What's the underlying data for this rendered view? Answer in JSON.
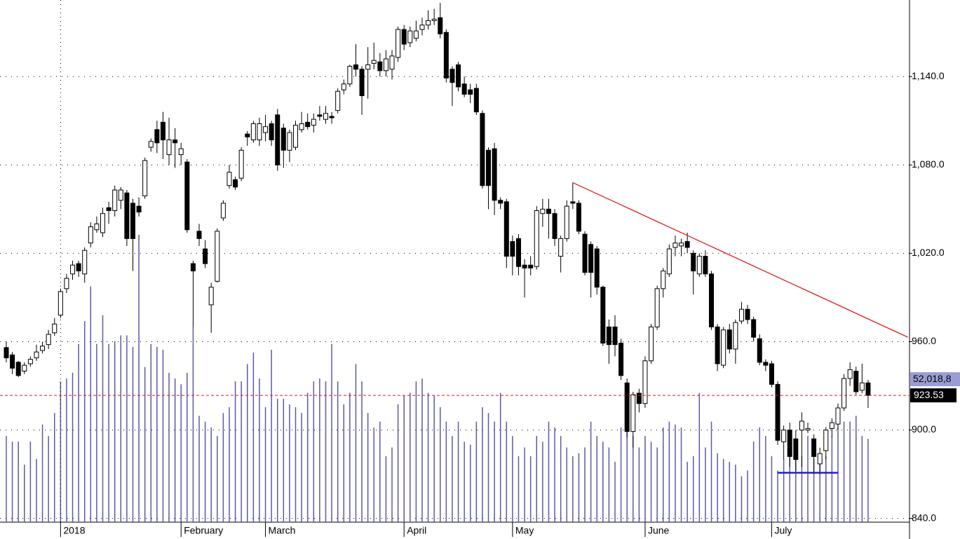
{
  "chart_data": {
    "type": "candlestick",
    "categories": [
      null,
      null,
      null,
      null,
      null,
      null,
      null,
      null,
      null,
      "2018",
      null,
      null,
      null,
      null,
      null,
      null,
      null,
      null,
      null,
      null,
      null,
      null,
      null,
      null,
      null,
      null,
      null,
      null,
      null,
      "February",
      null,
      null,
      null,
      null,
      null,
      null,
      null,
      null,
      null,
      null,
      null,
      null,
      null,
      "March",
      null,
      null,
      null,
      null,
      null,
      null,
      null,
      null,
      null,
      null,
      null,
      null,
      null,
      null,
      null,
      null,
      null,
      null,
      null,
      null,
      null,
      null,
      "April",
      null,
      null,
      null,
      null,
      null,
      null,
      null,
      null,
      null,
      null,
      null,
      null,
      null,
      null,
      null,
      null,
      null,
      "May",
      null,
      null,
      null,
      null,
      null,
      null,
      null,
      null,
      null,
      null,
      null,
      null,
      null,
      null,
      null,
      null,
      null,
      null,
      null,
      null,
      null,
      "June",
      null,
      null,
      null,
      null,
      null,
      null,
      null,
      null,
      null,
      null,
      null,
      null,
      null,
      null,
      null,
      null,
      null,
      null,
      null,
      null,
      "July",
      null,
      null,
      null,
      null,
      null,
      null,
      null,
      null,
      null,
      null,
      null,
      null,
      null,
      null,
      null,
      null
    ],
    "open": [
      956,
      951,
      946,
      940,
      945,
      949,
      954,
      958,
      966,
      978,
      996,
      1006,
      1013,
      1006,
      1027,
      1036,
      1034,
      1051,
      1049,
      1056,
      1061,
      1054,
      1052,
      1059,
      1092,
      1104,
      1109,
      1087,
      1097,
      1087,
      1082,
      1013,
      1035,
      1023,
      985,
      1001,
      1044,
      1066,
      1070,
      1071,
      1101,
      1097,
      1097,
      1102,
      1108,
      1114,
      1105,
      1090,
      1092,
      1104,
      1109,
      1107,
      1114,
      1111,
      1113,
      1117,
      1131,
      1135,
      1148,
      1145,
      1145,
      1149,
      1150,
      1144,
      1145,
      1153,
      1172,
      1163,
      1166,
      1172,
      1175,
      1178,
      1180,
      1170,
      1145,
      1148,
      1135,
      1131,
      1132,
      1115,
      1090,
      1091,
      1056,
      1055,
      1028,
      1030,
      1012,
      1012,
      1011,
      1047,
      1050,
      1047,
      1018,
      1030,
      1055,
      1054,
      1033,
      1026,
      1023,
      997,
      970,
      970,
      959,
      932,
      899,
      925,
      918,
      947,
      970,
      996,
      1006,
      1024,
      1025,
      1028,
      1020,
      1006,
      1018,
      1006,
      970,
      944,
      968,
      955,
      974,
      982,
      975,
      962,
      946,
      945,
      931,
      892,
      900,
      894,
      900,
      900,
      894,
      877,
      886,
      901,
      904,
      915,
      935,
      940,
      927,
      932
    ],
    "high": [
      960,
      953,
      947,
      946,
      950,
      958,
      960,
      968,
      976,
      996,
      1006,
      1015,
      1015,
      1024,
      1041,
      1045,
      1051,
      1055,
      1066,
      1065,
      1063,
      1057,
      1058,
      1085,
      1098,
      1110,
      1116,
      1112,
      1105,
      1095,
      1084,
      1015,
      1040,
      1029,
      1000,
      1037,
      1056,
      1080,
      1072,
      1092,
      1103,
      1110,
      1112,
      1114,
      1110,
      1118,
      1108,
      1104,
      1110,
      1116,
      1115,
      1115,
      1120,
      1120,
      1116,
      1132,
      1138,
      1148,
      1162,
      1147,
      1160,
      1163,
      1156,
      1158,
      1158,
      1174,
      1175,
      1174,
      1178,
      1180,
      1185,
      1186,
      1190,
      1172,
      1147,
      1150,
      1140,
      1135,
      1135,
      1117,
      1092,
      1095,
      1058,
      1057,
      1032,
      1033,
      1016,
      1018,
      1052,
      1057,
      1057,
      1050,
      1032,
      1056,
      1068,
      1056,
      1035,
      1028,
      1025,
      998,
      975,
      978,
      962,
      935,
      926,
      928,
      950,
      972,
      998,
      1010,
      1026,
      1032,
      1030,
      1034,
      1022,
      1020,
      1022,
      1008,
      972,
      970,
      972,
      975,
      987,
      985,
      977,
      965,
      948,
      947,
      933,
      903,
      905,
      900,
      912,
      905,
      897,
      888,
      902,
      908,
      918,
      938,
      946,
      943,
      945,
      934
    ],
    "low": [
      946,
      938,
      936,
      938,
      943,
      947,
      952,
      955,
      964,
      976,
      993,
      1002,
      1004,
      1000,
      1024,
      1034,
      1031,
      1040,
      1045,
      1050,
      1025,
      1008,
      1045,
      1057,
      1089,
      1088,
      1084,
      1080,
      1078,
      1080,
      1034,
      970,
      1025,
      1010,
      966,
      1000,
      1042,
      1064,
      1063,
      1069,
      1093,
      1095,
      1093,
      1096,
      1093,
      1076,
      1078,
      1082,
      1090,
      1102,
      1104,
      1102,
      1110,
      1108,
      1108,
      1115,
      1128,
      1133,
      1140,
      1114,
      1125,
      1145,
      1140,
      1140,
      1138,
      1150,
      1158,
      1160,
      1164,
      1168,
      1172,
      1175,
      1166,
      1136,
      1120,
      1130,
      1126,
      1122,
      1114,
      1064,
      1050,
      1046,
      1050,
      1010,
      1005,
      1005,
      990,
      1005,
      1009,
      1038,
      1030,
      1025,
      1007,
      1028,
      1050,
      1033,
      1005,
      990,
      992,
      957,
      945,
      950,
      934,
      895,
      888,
      912,
      915,
      945,
      968,
      990,
      1004,
      1018,
      1018,
      1020,
      992,
      1004,
      1004,
      968,
      940,
      942,
      952,
      945,
      972,
      972,
      960,
      944,
      940,
      929,
      890,
      880,
      875,
      872,
      875,
      898,
      870,
      870,
      880,
      895,
      900,
      913,
      930,
      924,
      925,
      915
    ],
    "close": [
      949,
      942,
      937,
      944,
      948,
      953,
      957,
      965,
      972,
      994,
      1003,
      1012,
      1008,
      1022,
      1038,
      1040,
      1047,
      1049,
      1063,
      1063,
      1030,
      1030,
      1048,
      1083,
      1096,
      1095,
      1097,
      1097,
      1095,
      1091,
      1036,
      1008,
      1030,
      1013,
      997,
      1035,
      1054,
      1075,
      1065,
      1090,
      1099,
      1108,
      1108,
      1106,
      1097,
      1080,
      1090,
      1102,
      1107,
      1108,
      1106,
      1111,
      1113,
      1115,
      1112,
      1130,
      1135,
      1147,
      1145,
      1127,
      1148,
      1151,
      1144,
      1152,
      1154,
      1172,
      1162,
      1171,
      1171,
      1175,
      1178,
      1179,
      1169,
      1139,
      1136,
      1133,
      1128,
      1128,
      1116,
      1066,
      1066,
      1056,
      1054,
      1018,
      1018,
      1011,
      1010,
      1010,
      1049,
      1050,
      1047,
      1030,
      1030,
      1052,
      1054,
      1035,
      1007,
      1007,
      997,
      959,
      958,
      958,
      937,
      899,
      924,
      918,
      947,
      970,
      996,
      1008,
      1023,
      1027,
      1027,
      1024,
      1008,
      1018,
      1006,
      970,
      945,
      968,
      955,
      973,
      982,
      975,
      963,
      946,
      944,
      931,
      893,
      900,
      882,
      880,
      906,
      901,
      882,
      884,
      900,
      905,
      915,
      935,
      941,
      926,
      932,
      923.53
    ],
    "volume": [
      30,
      28,
      28,
      20,
      28,
      22,
      34,
      30,
      38,
      49,
      50,
      52,
      62,
      70,
      82,
      62,
      72,
      62,
      63,
      65,
      65,
      61,
      100,
      54,
      62,
      61,
      60,
      52,
      50,
      48,
      52,
      68,
      37,
      35,
      33,
      30,
      38,
      40,
      49,
      49,
      55,
      59,
      50,
      40,
      60,
      43,
      43,
      41,
      40,
      38,
      45,
      49,
      50,
      49,
      62,
      49,
      41,
      45,
      55,
      49,
      38,
      33,
      35,
      23,
      26,
      41,
      44,
      45,
      49,
      50,
      45,
      44,
      40,
      35,
      30,
      35,
      28,
      27,
      35,
      40,
      38,
      35,
      45,
      35,
      30,
      23,
      26,
      23,
      30,
      28,
      35,
      33,
      30,
      26,
      23,
      24,
      26,
      35,
      30,
      28,
      26,
      21,
      33,
      35,
      30,
      26,
      30,
      28,
      26,
      33,
      35,
      34,
      33,
      21,
      23,
      45,
      26,
      35,
      24,
      22,
      21,
      20,
      16,
      18,
      28,
      33,
      30,
      23,
      18,
      22,
      28,
      26,
      23,
      30,
      22,
      21,
      23,
      30,
      33,
      35,
      35,
      37,
      30,
      29
    ],
    "up_color": "#ffffff",
    "down_color": "#000000",
    "volume_color": "#5a5aa8",
    "ylim": [
      826,
      1192
    ],
    "y2lim": [
      0,
      100
    ],
    "yticks": [
      {
        "value": 840,
        "label": "840.0"
      },
      {
        "value": 900,
        "label": "900.0"
      },
      {
        "value": 960,
        "label": "960.0"
      },
      {
        "value": 1020,
        "label": "1,020.0"
      },
      {
        "value": 1080,
        "label": "1,080.0"
      },
      {
        "value": 1140,
        "label": "1,140.0"
      }
    ],
    "grid": true,
    "trend_line": {
      "color": "#e02020",
      "x": [
        94,
        149.6
      ],
      "y": [
        1068,
        963
      ]
    },
    "support_line": {
      "color": "#2020d0",
      "x": [
        128,
        138
      ],
      "y": [
        871,
        871
      ]
    },
    "last_close_label": "923.53",
    "volume_label": "52,018,8"
  }
}
